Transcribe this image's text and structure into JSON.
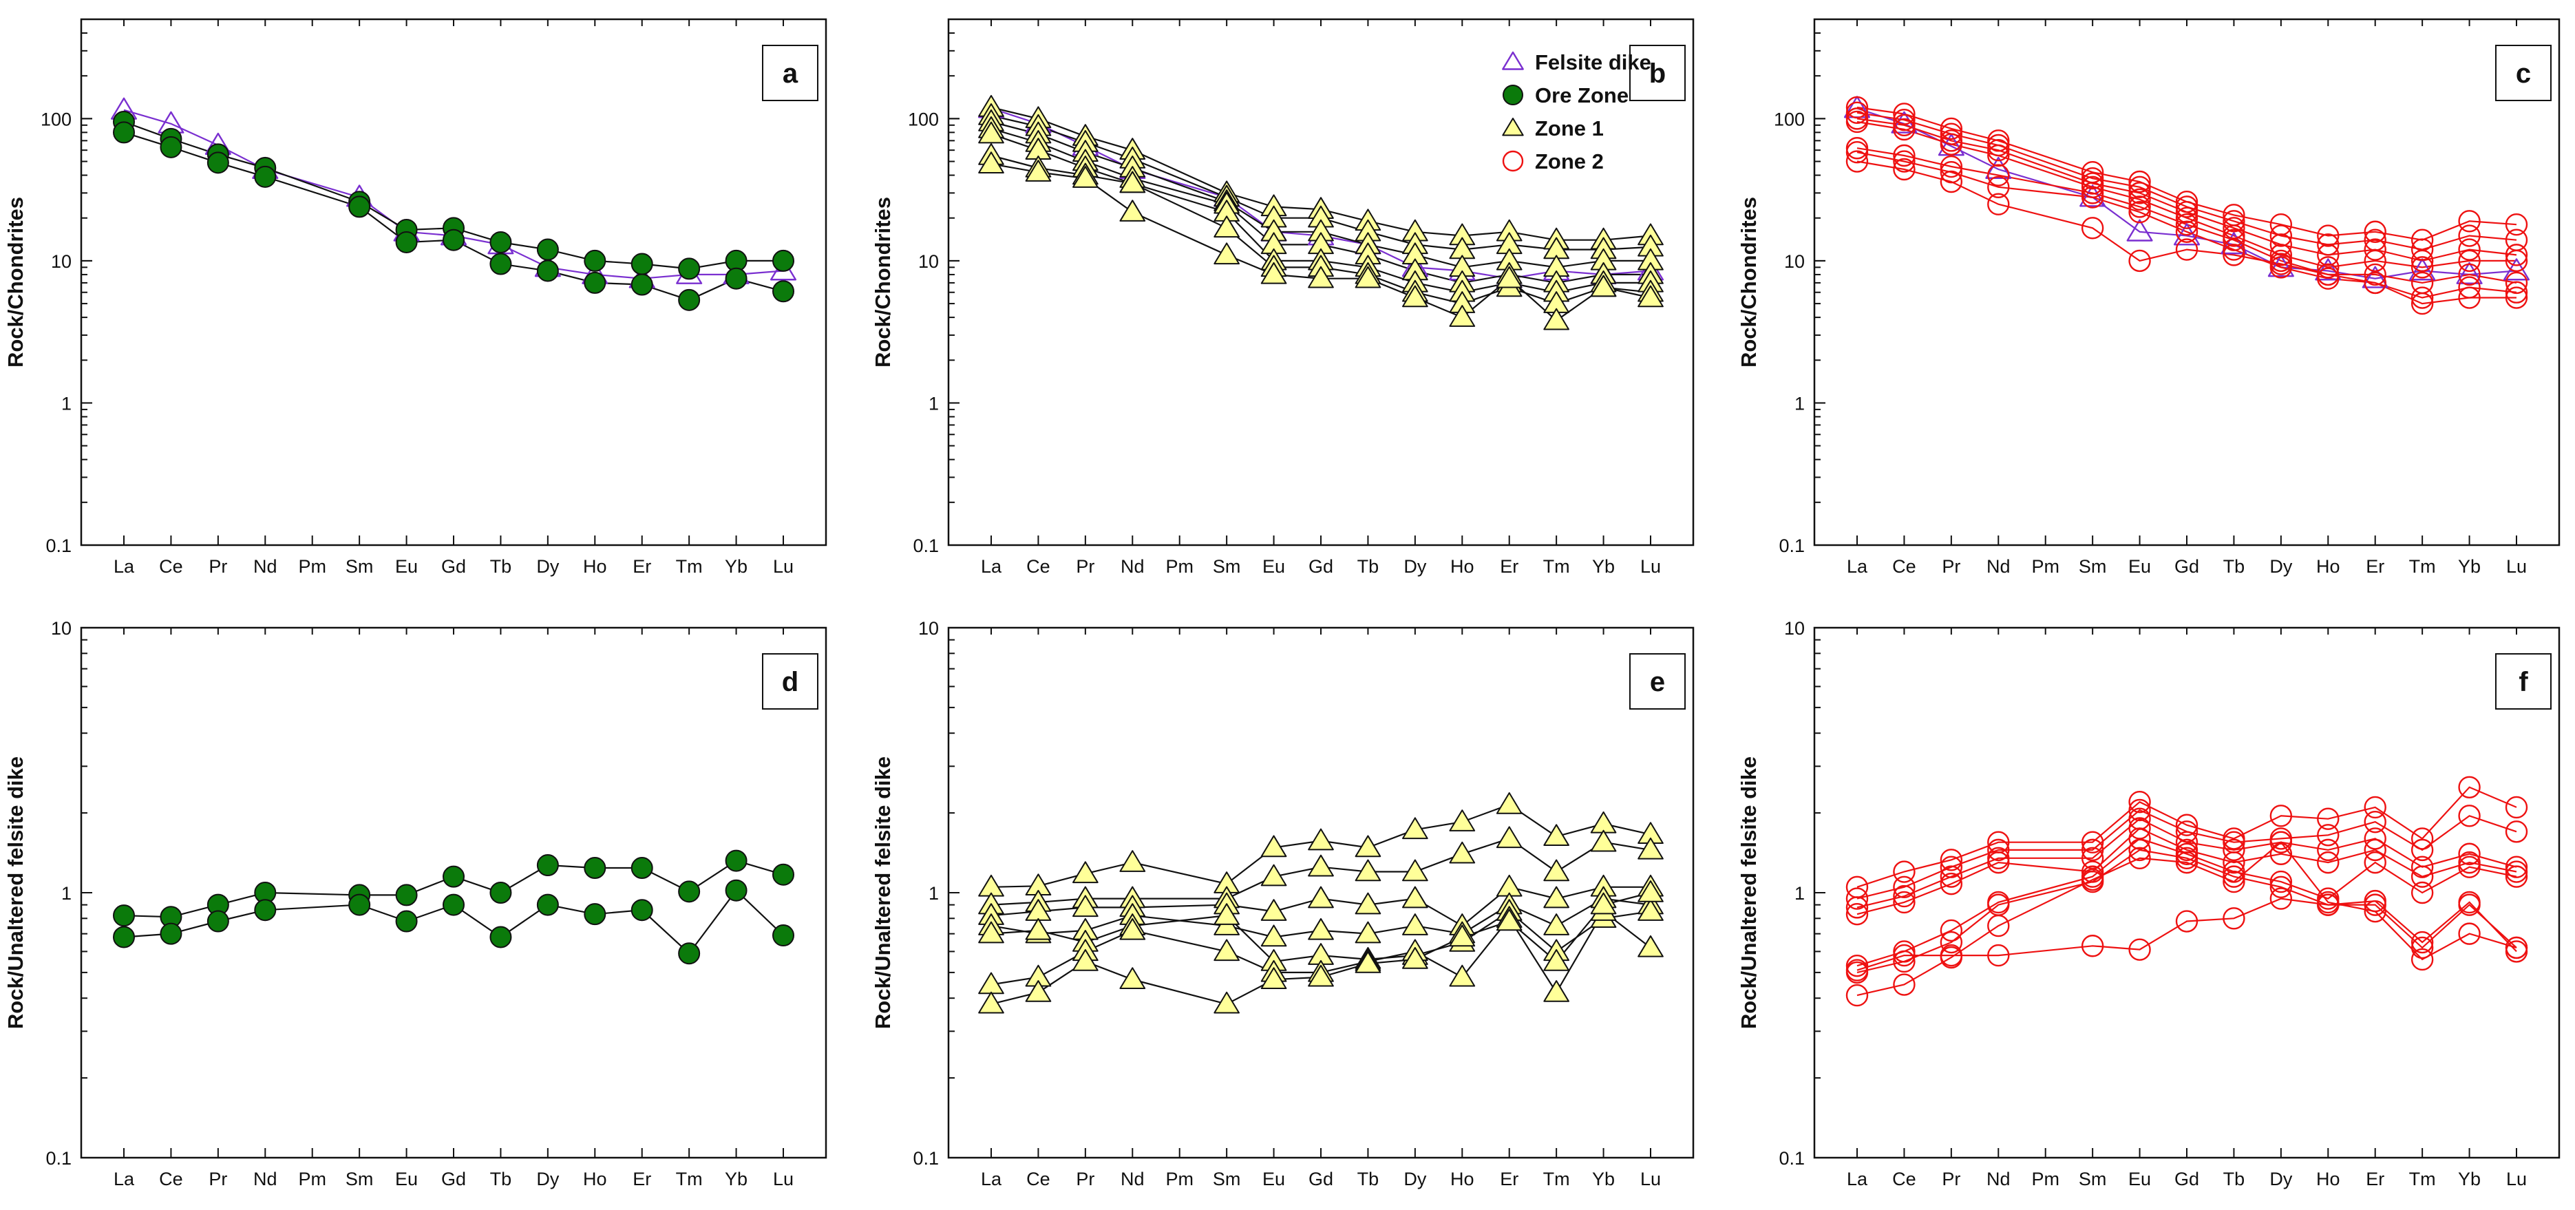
{
  "figure": {
    "elements": [
      "La",
      "Ce",
      "Pr",
      "Nd",
      "Pm",
      "Sm",
      "Eu",
      "Gd",
      "Tb",
      "Dy",
      "Ho",
      "Er",
      "Tm",
      "Yb",
      "Lu"
    ],
    "colors": {
      "felsite_dike": "#7a2fd0",
      "ore_zone": "#0b7a0b",
      "zone1": "#ffff99",
      "zone2": "#ee1111",
      "line": "#111111"
    },
    "legend": [
      {
        "label": "Felsite dike",
        "marker": "triangle-open",
        "color": "#7a2fd0"
      },
      {
        "label": "Ore Zone",
        "marker": "circle-filled",
        "color": "#0b7a0b"
      },
      {
        "label": "Zone 1",
        "marker": "triangle-filled",
        "color": "#ffff99"
      },
      {
        "label": "Zone 2",
        "marker": "circle-open",
        "color": "#ee1111"
      }
    ]
  },
  "chart_data": [
    {
      "id": "a",
      "type": "line",
      "panel_label": "a",
      "ylabel": "Rock/Chondrites",
      "yscale": "log",
      "ylim": [
        0.1,
        500
      ],
      "yticks": [
        {
          "v": 0.1,
          "label": "0.1"
        },
        {
          "v": 1,
          "label": "1"
        },
        {
          "v": 10,
          "label": "10"
        },
        {
          "v": 100,
          "label": "100"
        }
      ],
      "categories": [
        "La",
        "Ce",
        "Pr",
        "Nd",
        "Pm",
        "Sm",
        "Eu",
        "Gd",
        "Tb",
        "Dy",
        "Ho",
        "Er",
        "Tm",
        "Yb",
        "Lu"
      ],
      "series": [
        {
          "name": "Felsite dike",
          "marker": "triangle-open",
          "values": [
            115,
            92,
            65,
            44,
            null,
            28,
            16,
            15,
            13,
            9,
            8,
            7.5,
            8,
            8,
            8.5
          ]
        },
        {
          "name": "Ore Zone",
          "marker": "circle-filled",
          "values": [
            95,
            72,
            56,
            45,
            null,
            26,
            16.5,
            17,
            13.5,
            12,
            10,
            9.5,
            8.8,
            10,
            10
          ]
        },
        {
          "name": "Ore Zone",
          "marker": "circle-filled",
          "values": [
            80,
            63,
            49,
            39,
            null,
            24,
            13.5,
            14,
            9.5,
            8.5,
            7,
            6.8,
            5.3,
            7.5,
            6.1
          ]
        }
      ]
    },
    {
      "id": "b",
      "type": "line",
      "panel_label": "b",
      "ylabel": "Rock/Chondrites",
      "yscale": "log",
      "ylim": [
        0.1,
        500
      ],
      "yticks": [
        {
          "v": 0.1,
          "label": "0.1"
        },
        {
          "v": 1,
          "label": "1"
        },
        {
          "v": 10,
          "label": "10"
        },
        {
          "v": 100,
          "label": "100"
        }
      ],
      "categories": [
        "La",
        "Ce",
        "Pr",
        "Nd",
        "Pm",
        "Sm",
        "Eu",
        "Gd",
        "Tb",
        "Dy",
        "Ho",
        "Er",
        "Tm",
        "Yb",
        "Lu"
      ],
      "show_legend": true,
      "series": [
        {
          "name": "Felsite dike",
          "marker": "triangle-open",
          "values": [
            118,
            92,
            64,
            44,
            null,
            28,
            16,
            15,
            13,
            9,
            8.5,
            7.5,
            8.5,
            8,
            8.5
          ]
        },
        {
          "name": "Zone 1",
          "marker": "triangle-filled",
          "values": [
            120,
            100,
            75,
            60,
            null,
            30,
            24,
            23,
            19,
            16,
            15,
            16,
            14,
            14,
            15
          ]
        },
        {
          "name": "Zone 1",
          "marker": "triangle-filled",
          "values": [
            105,
            88,
            68,
            52,
            null,
            28,
            20,
            20,
            16,
            13,
            12,
            13,
            12,
            12,
            12.5
          ]
        },
        {
          "name": "Zone 1",
          "marker": "triangle-filled",
          "values": [
            95,
            78,
            58,
            45,
            null,
            26,
            16,
            16,
            13,
            11,
            9,
            10,
            9,
            10,
            10
          ]
        },
        {
          "name": "Zone 1",
          "marker": "triangle-filled",
          "values": [
            85,
            68,
            50,
            38,
            null,
            25,
            13,
            13,
            11,
            8.5,
            7,
            8,
            7,
            8,
            8
          ]
        },
        {
          "name": "Zone 1",
          "marker": "triangle-filled",
          "values": [
            78,
            60,
            45,
            35,
            null,
            22,
            10,
            10,
            9,
            7,
            6,
            7,
            6,
            7,
            7
          ]
        },
        {
          "name": "Zone 1",
          "marker": "triangle-filled",
          "values": [
            55,
            45,
            40,
            35,
            null,
            17,
            9,
            9,
            8,
            6,
            5,
            6.5,
            5,
            6.5,
            6
          ]
        },
        {
          "name": "Zone 1",
          "marker": "triangle-filled",
          "values": [
            48,
            42,
            38,
            22,
            null,
            11,
            8,
            7.5,
            7.5,
            5.5,
            4,
            7.5,
            3.8,
            6.5,
            5.5
          ]
        }
      ]
    },
    {
      "id": "c",
      "type": "line",
      "panel_label": "c",
      "ylabel": "Rock/Chondrites",
      "yscale": "log",
      "ylim": [
        0.1,
        500
      ],
      "yticks": [
        {
          "v": 0.1,
          "label": "0.1"
        },
        {
          "v": 1,
          "label": "1"
        },
        {
          "v": 10,
          "label": "10"
        },
        {
          "v": 100,
          "label": "100"
        }
      ],
      "categories": [
        "La",
        "Ce",
        "Pr",
        "Nd",
        "Pm",
        "Sm",
        "Eu",
        "Gd",
        "Tb",
        "Dy",
        "Ho",
        "Er",
        "Tm",
        "Yb",
        "Lu"
      ],
      "series": [
        {
          "name": "Felsite dike",
          "marker": "triangle-open",
          "values": [
            118,
            92,
            64,
            44,
            null,
            28,
            16,
            15,
            13,
            9,
            8.5,
            7.5,
            8.5,
            8,
            8.5
          ]
        },
        {
          "name": "Zone 2",
          "marker": "circle-open",
          "values": [
            120,
            108,
            85,
            70,
            null,
            42,
            36,
            26,
            21,
            18,
            15,
            16,
            14,
            19,
            18
          ]
        },
        {
          "name": "Zone 2",
          "marker": "circle-open",
          "values": [
            110,
            98,
            78,
            65,
            null,
            38,
            33,
            24,
            19,
            15,
            13,
            14,
            12,
            15,
            14
          ]
        },
        {
          "name": "Zone 2",
          "marker": "circle-open",
          "values": [
            100,
            90,
            70,
            60,
            null,
            35,
            30,
            22,
            17,
            13,
            11,
            12,
            10,
            12,
            11
          ]
        },
        {
          "name": "Zone 2",
          "marker": "circle-open",
          "values": [
            95,
            84,
            66,
            55,
            null,
            33,
            27,
            20,
            15,
            11,
            9,
            10,
            9,
            10,
            10
          ]
        },
        {
          "name": "Zone 2",
          "marker": "circle-open",
          "values": [
            62,
            55,
            46,
            40,
            null,
            30,
            24,
            18,
            14,
            10,
            8,
            8,
            7,
            8,
            7
          ]
        },
        {
          "name": "Zone 2",
          "marker": "circle-open",
          "values": [
            58,
            50,
            42,
            33,
            null,
            28,
            22,
            16,
            12,
            9,
            7.5,
            7,
            5.5,
            6.5,
            6
          ]
        },
        {
          "name": "Zone 2",
          "marker": "circle-open",
          "values": [
            50,
            44,
            36,
            25,
            null,
            17,
            10,
            12,
            11,
            9.5,
            8,
            7,
            5,
            5.5,
            5.5
          ]
        }
      ]
    },
    {
      "id": "d",
      "type": "line",
      "panel_label": "d",
      "ylabel": "Rock/Unaltered felsite dike",
      "yscale": "log",
      "ylim": [
        0.1,
        10
      ],
      "yticks": [
        {
          "v": 0.1,
          "label": "0.1"
        },
        {
          "v": 1,
          "label": "1"
        },
        {
          "v": 10,
          "label": "10"
        }
      ],
      "categories": [
        "La",
        "Ce",
        "Pr",
        "Nd",
        "Pm",
        "Sm",
        "Eu",
        "Gd",
        "Tb",
        "Dy",
        "Ho",
        "Er",
        "Tm",
        "Yb",
        "Lu"
      ],
      "series": [
        {
          "name": "Ore Zone",
          "marker": "circle-filled",
          "values": [
            0.82,
            0.81,
            0.9,
            1.0,
            null,
            0.98,
            0.98,
            1.15,
            1.0,
            1.27,
            1.24,
            1.24,
            1.01,
            1.32,
            1.17
          ]
        },
        {
          "name": "Ore Zone",
          "marker": "circle-filled",
          "values": [
            0.68,
            0.7,
            0.78,
            0.86,
            null,
            0.9,
            0.78,
            0.9,
            0.68,
            0.9,
            0.83,
            0.86,
            0.59,
            1.02,
            0.69
          ]
        }
      ]
    },
    {
      "id": "e",
      "type": "line",
      "panel_label": "e",
      "ylabel": "Rock/Unaltered felsite dike",
      "yscale": "log",
      "ylim": [
        0.1,
        10
      ],
      "yticks": [
        {
          "v": 0.1,
          "label": "0.1"
        },
        {
          "v": 1,
          "label": "1"
        },
        {
          "v": 10,
          "label": "10"
        }
      ],
      "categories": [
        "La",
        "Ce",
        "Pr",
        "Nd",
        "Pm",
        "Sm",
        "Eu",
        "Gd",
        "Tb",
        "Dy",
        "Ho",
        "Er",
        "Tm",
        "Yb",
        "Lu"
      ],
      "series": [
        {
          "name": "Zone 1",
          "marker": "triangle-filled",
          "values": [
            1.05,
            1.06,
            1.18,
            1.3,
            null,
            1.08,
            1.48,
            1.57,
            1.48,
            1.73,
            1.85,
            2.15,
            1.63,
            1.82,
            1.66
          ]
        },
        {
          "name": "Zone 1",
          "marker": "triangle-filled",
          "values": [
            0.9,
            0.92,
            0.95,
            0.95,
            null,
            0.95,
            1.15,
            1.25,
            1.2,
            1.2,
            1.4,
            1.6,
            1.2,
            1.55,
            1.45
          ]
        },
        {
          "name": "Zone 1",
          "marker": "triangle-filled",
          "values": [
            0.82,
            0.85,
            0.88,
            0.88,
            null,
            0.9,
            0.85,
            0.95,
            0.9,
            0.95,
            0.75,
            1.05,
            0.95,
            1.05,
            1.05
          ]
        },
        {
          "name": "Zone 1",
          "marker": "triangle-filled",
          "values": [
            0.75,
            0.7,
            0.72,
            0.82,
            null,
            0.75,
            0.68,
            0.72,
            0.7,
            0.75,
            0.7,
            0.9,
            0.75,
            0.95,
            0.9
          ]
        },
        {
          "name": "Zone 1",
          "marker": "triangle-filled",
          "values": [
            0.7,
            0.72,
            0.65,
            0.75,
            null,
            0.82,
            0.55,
            0.58,
            0.56,
            0.58,
            0.65,
            0.85,
            0.6,
            0.8,
            0.85
          ]
        },
        {
          "name": "Zone 1",
          "marker": "triangle-filled",
          "values": [
            0.45,
            0.48,
            0.6,
            0.72,
            null,
            0.6,
            0.5,
            0.5,
            0.55,
            0.6,
            0.48,
            0.8,
            0.42,
            0.85,
            0.62
          ]
        },
        {
          "name": "Zone 1",
          "marker": "triangle-filled",
          "values": [
            0.38,
            0.42,
            0.55,
            0.47,
            null,
            0.38,
            0.47,
            0.48,
            0.54,
            0.56,
            0.68,
            0.78,
            0.55,
            0.9,
            1.0
          ]
        }
      ]
    },
    {
      "id": "f",
      "type": "line",
      "panel_label": "f",
      "ylabel": "Rock/Unaltered felsite dike",
      "yscale": "log",
      "ylim": [
        0.1,
        10
      ],
      "yticks": [
        {
          "v": 0.1,
          "label": "0.1"
        },
        {
          "v": 1,
          "label": "1"
        },
        {
          "v": 10,
          "label": "10"
        }
      ],
      "categories": [
        "La",
        "Ce",
        "Pr",
        "Nd",
        "Pm",
        "Sm",
        "Eu",
        "Gd",
        "Tb",
        "Dy",
        "Ho",
        "Er",
        "Tm",
        "Yb",
        "Lu"
      ],
      "series": [
        {
          "name": "Zone 2",
          "marker": "circle-open",
          "values": [
            1.05,
            1.2,
            1.33,
            1.55,
            null,
            1.55,
            2.2,
            1.8,
            1.6,
            1.95,
            1.9,
            2.1,
            1.6,
            2.5,
            2.1
          ]
        },
        {
          "name": "Zone 2",
          "marker": "circle-open",
          "values": [
            0.95,
            1.05,
            1.25,
            1.45,
            null,
            1.45,
            2.05,
            1.7,
            1.55,
            1.6,
            1.65,
            1.85,
            1.45,
            1.95,
            1.7
          ]
        },
        {
          "name": "Zone 2",
          "marker": "circle-open",
          "values": [
            0.88,
            0.97,
            1.15,
            1.35,
            null,
            1.35,
            1.9,
            1.55,
            1.45,
            1.55,
            1.45,
            1.6,
            1.25,
            1.4,
            1.25
          ]
        },
        {
          "name": "Zone 2",
          "marker": "circle-open",
          "values": [
            0.83,
            0.92,
            1.08,
            1.3,
            null,
            1.2,
            1.75,
            1.45,
            1.3,
            1.4,
            1.3,
            1.45,
            1.15,
            1.3,
            1.2
          ]
        },
        {
          "name": "Zone 2",
          "marker": "circle-open",
          "values": [
            0.53,
            0.6,
            0.72,
            0.92,
            null,
            1.15,
            1.6,
            1.4,
            1.2,
            1.1,
            0.95,
            1.3,
            1.0,
            1.25,
            1.15
          ]
        },
        {
          "name": "Zone 2",
          "marker": "circle-open",
          "values": [
            0.5,
            0.55,
            0.65,
            0.9,
            null,
            1.1,
            1.45,
            1.35,
            1.15,
            1.05,
            0.9,
            0.9,
            0.62,
            0.9,
            0.62
          ]
        },
        {
          "name": "Zone 2",
          "marker": "circle-open",
          "values": [
            0.41,
            0.45,
            0.57,
            0.75,
            null,
            1.12,
            1.35,
            1.3,
            1.1,
            1.55,
            0.92,
            0.85,
            0.56,
            0.7,
            0.62
          ]
        },
        {
          "name": "Zone 2",
          "marker": "circle-open",
          "values": [
            0.51,
            0.58,
            0.58,
            0.58,
            null,
            0.63,
            0.61,
            0.78,
            0.8,
            0.95,
            0.9,
            0.93,
            0.65,
            0.92,
            0.6
          ]
        }
      ]
    }
  ]
}
